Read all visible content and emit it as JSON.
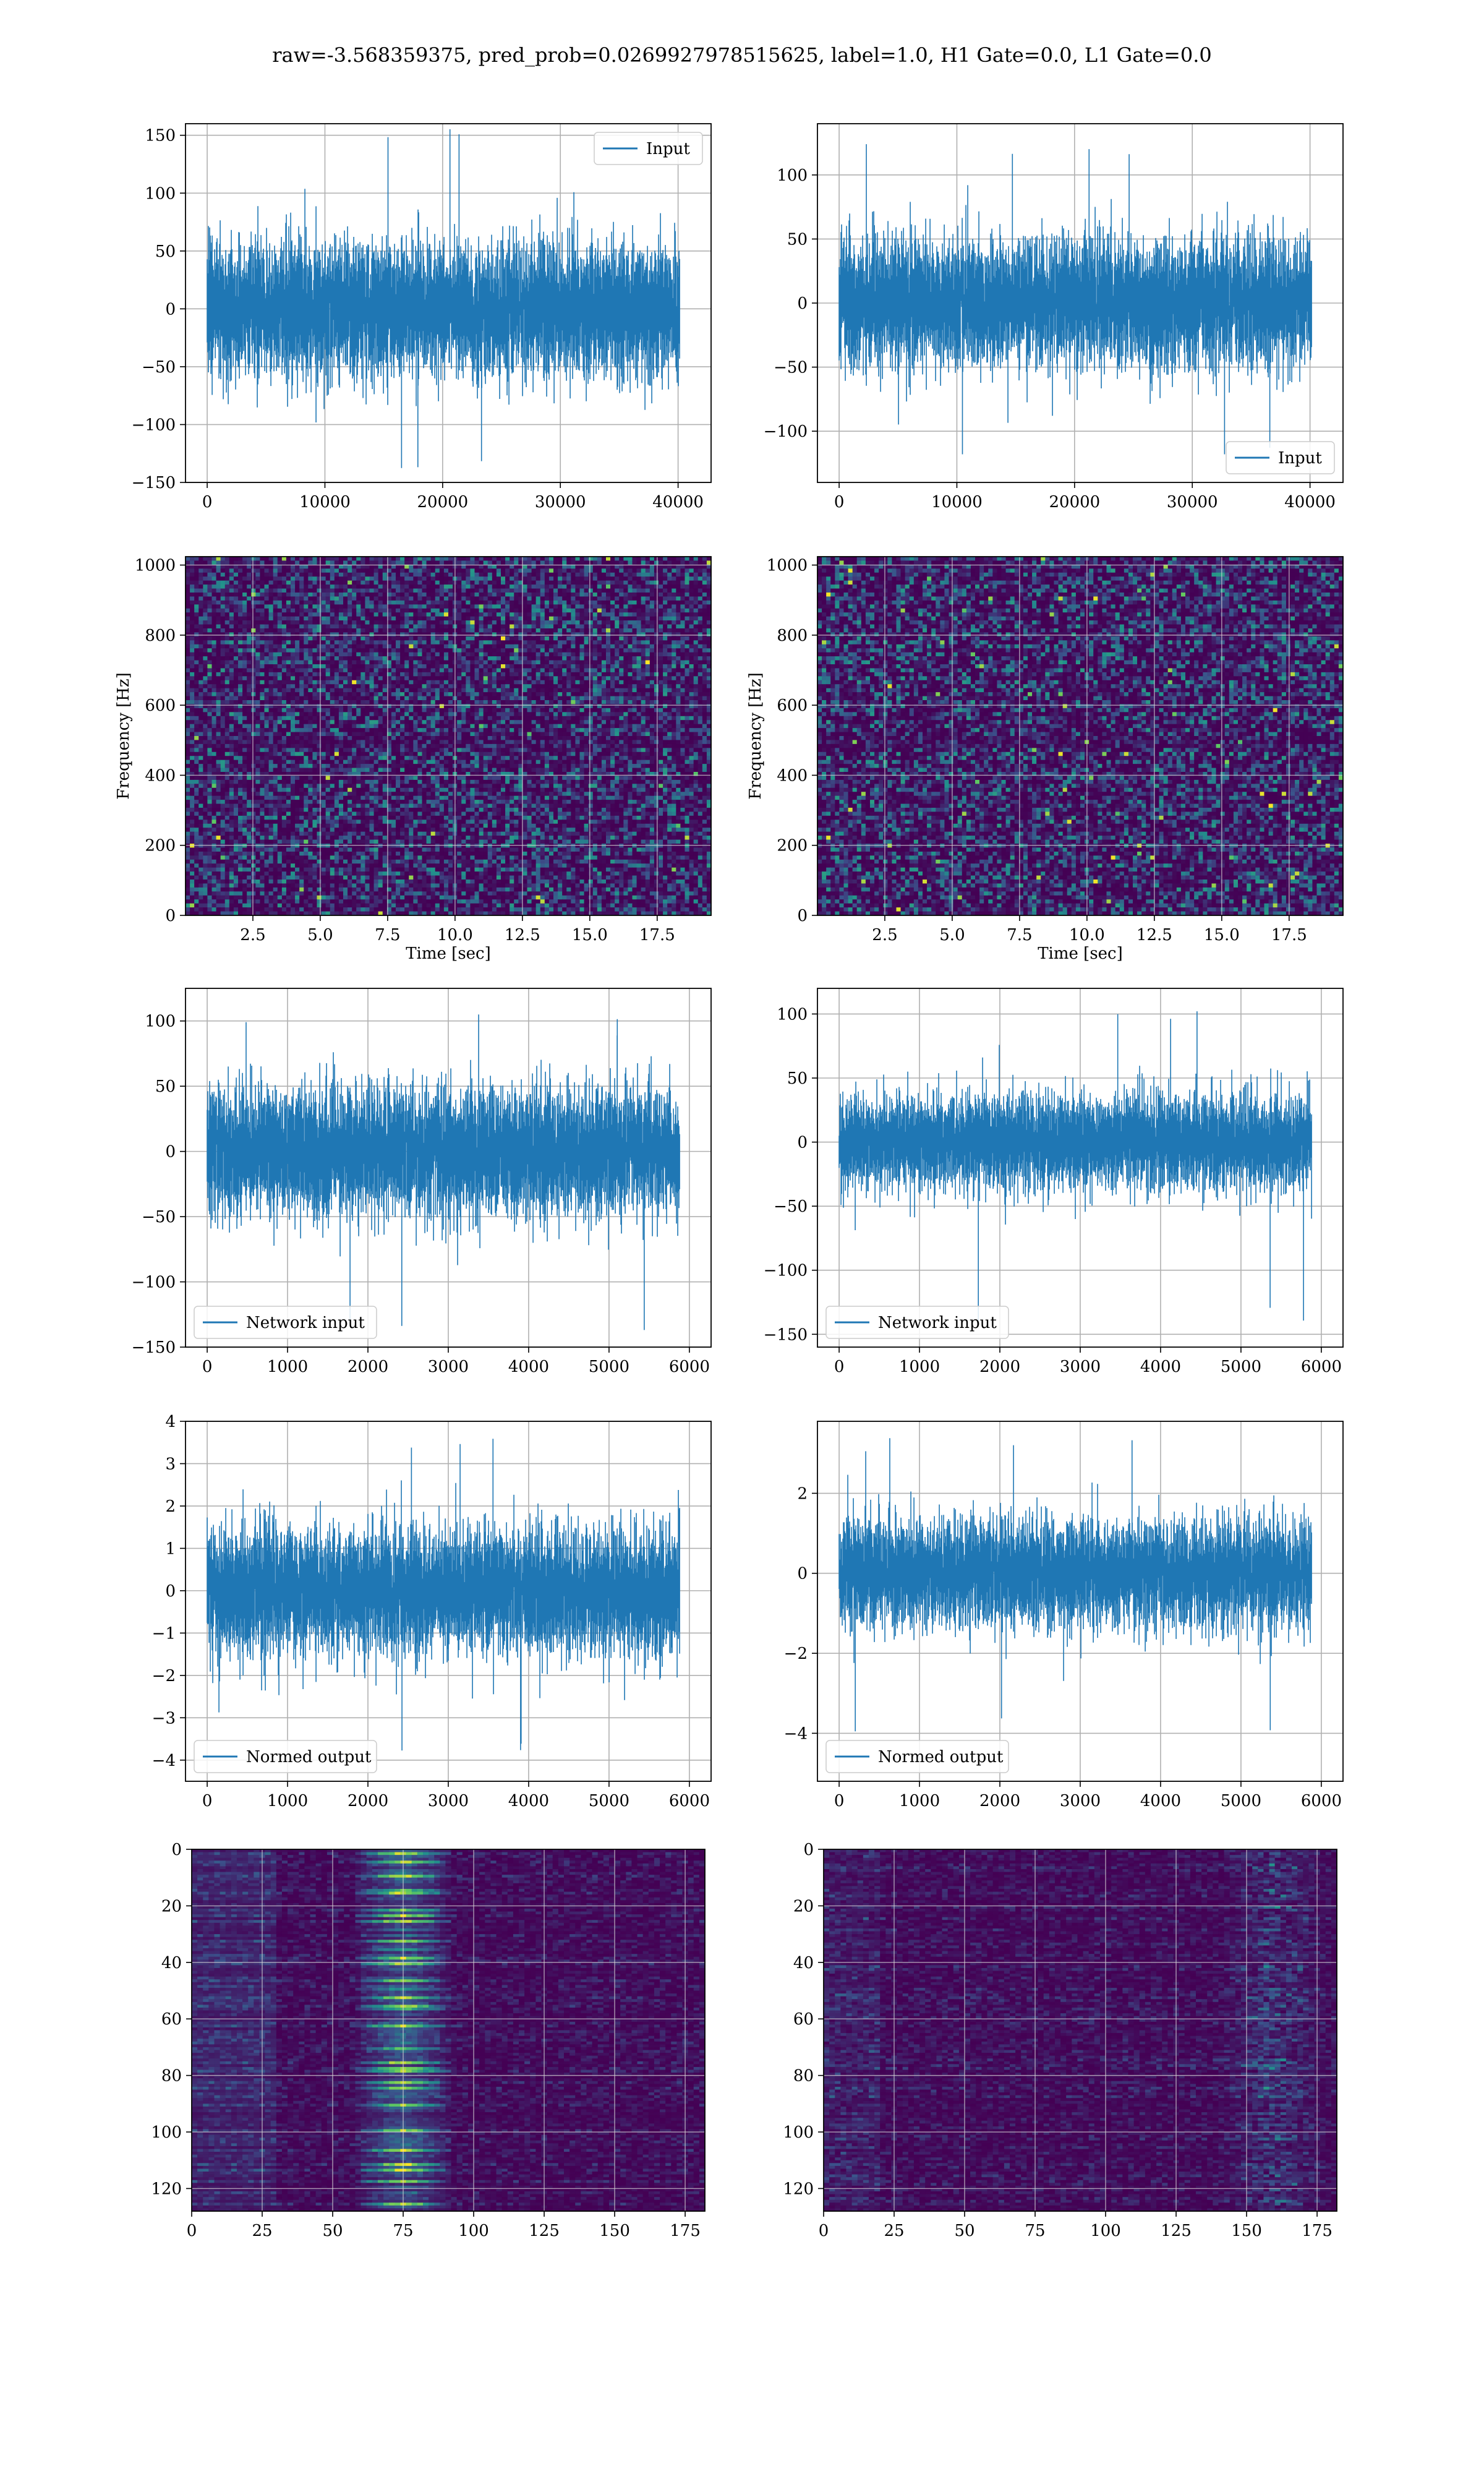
{
  "figure": {
    "suptitle": "raw=-3.568359375, pred_prob=0.0269927978515625, label=1.0, H1 Gate=0.0, L1 Gate=0.0"
  },
  "colors": {
    "series": "#1f77b4",
    "grid": "#b0b0b0",
    "viridis_dark": "#440154",
    "viridis_mid": "#21918c",
    "viridis_bright": "#fde725"
  },
  "chart_data": [
    {
      "id": "input_h1",
      "type": "line",
      "title": "",
      "xlabel": "",
      "ylabel": "",
      "series": [
        {
          "name": "Input",
          "values_description": "dense noise",
          "n_points": 40960,
          "envelope": {
            "typical": [
              -70,
              65
            ],
            "extremes": [
              -140,
              160
            ]
          }
        }
      ],
      "xlim": [
        0,
        40960
      ],
      "ylim": [
        -150,
        160
      ],
      "xticks": [
        0,
        10000,
        20000,
        30000,
        40000
      ],
      "yticks": [
        -150,
        -100,
        -50,
        0,
        50,
        100,
        150
      ],
      "legend": "upper right",
      "grid": true
    },
    {
      "id": "input_l1",
      "type": "line",
      "title": "",
      "xlabel": "",
      "ylabel": "",
      "series": [
        {
          "name": "Input",
          "n_points": 40960,
          "envelope": {
            "typical": [
              -60,
              55
            ],
            "extremes": [
              -130,
              130
            ]
          }
        }
      ],
      "xlim": [
        0,
        40960
      ],
      "ylim": [
        -140,
        140
      ],
      "xticks": [
        0,
        10000,
        20000,
        30000,
        40000
      ],
      "yticks": [
        -100,
        -50,
        0,
        50,
        100
      ],
      "legend": "lower right",
      "grid": true
    },
    {
      "id": "spec_h1",
      "type": "heatmap",
      "title": "",
      "xlabel": "Time [sec]",
      "ylabel": "Frequency [Hz]",
      "xlim": [
        0,
        19.5
      ],
      "ylim": [
        0,
        1024
      ],
      "xticks": [
        "2.5",
        "5.0",
        "7.5",
        "10.0",
        "12.5",
        "15.0",
        "17.5"
      ],
      "yticks": [
        0,
        200,
        400,
        600,
        800,
        1000
      ],
      "colormap": "viridis",
      "grid": true
    },
    {
      "id": "spec_l1",
      "type": "heatmap",
      "title": "",
      "xlabel": "Time [sec]",
      "ylabel": "Frequency [Hz]",
      "xlim": [
        0,
        19.5
      ],
      "ylim": [
        0,
        1024
      ],
      "xticks": [
        "2.5",
        "5.0",
        "7.5",
        "10.0",
        "12.5",
        "15.0",
        "17.5"
      ],
      "yticks": [
        0,
        200,
        400,
        600,
        800,
        1000
      ],
      "colormap": "viridis",
      "grid": true
    },
    {
      "id": "net_h1",
      "type": "line",
      "title": "",
      "xlabel": "",
      "ylabel": "",
      "series": [
        {
          "name": "Network input",
          "n_points": 5850,
          "envelope": {
            "typical": [
              -60,
              55
            ],
            "extremes": [
              -137,
              112
            ]
          }
        }
      ],
      "xlim": [
        0,
        6000
      ],
      "ylim": [
        -150,
        125
      ],
      "xticks": [
        0,
        1000,
        2000,
        3000,
        4000,
        5000,
        6000
      ],
      "yticks": [
        -150,
        -100,
        -50,
        0,
        50,
        100
      ],
      "legend": "lower left",
      "grid": true
    },
    {
      "id": "net_l1",
      "type": "line",
      "title": "",
      "xlabel": "",
      "ylabel": "",
      "series": [
        {
          "name": "Network input",
          "n_points": 5850,
          "envelope": {
            "typical": [
              -45,
              45
            ],
            "extremes": [
              -150,
              112
            ]
          }
        }
      ],
      "xlim": [
        0,
        6000
      ],
      "ylim": [
        -160,
        120
      ],
      "xticks": [
        0,
        1000,
        2000,
        3000,
        4000,
        5000,
        6000
      ],
      "yticks": [
        -150,
        -100,
        -50,
        0,
        50,
        100
      ],
      "legend": "lower left",
      "grid": true
    },
    {
      "id": "norm_h1",
      "type": "line",
      "title": "",
      "xlabel": "",
      "ylabel": "",
      "series": [
        {
          "name": "Normed output",
          "n_points": 5850,
          "envelope": {
            "typical": [
              -1.8,
              1.8
            ],
            "extremes": [
              -4.2,
              3.6
            ]
          }
        }
      ],
      "xlim": [
        0,
        6000
      ],
      "ylim": [
        -4.5,
        4
      ],
      "xticks": [
        0,
        1000,
        2000,
        3000,
        4000,
        5000,
        6000
      ],
      "yticks": [
        -4,
        -3,
        -2,
        -1,
        0,
        1,
        2,
        3,
        4
      ],
      "legend": "lower left",
      "grid": true
    },
    {
      "id": "norm_l1",
      "type": "line",
      "title": "",
      "xlabel": "",
      "ylabel": "",
      "series": [
        {
          "name": "Normed output",
          "n_points": 5850,
          "envelope": {
            "typical": [
              -1.6,
              1.6
            ],
            "extremes": [
              -4.2,
              3.5
            ]
          }
        }
      ],
      "xlim": [
        0,
        6000
      ],
      "ylim": [
        -5.2,
        3.8
      ],
      "xticks": [
        0,
        1000,
        2000,
        3000,
        4000,
        5000,
        6000
      ],
      "yticks": [
        -4,
        -2,
        0,
        2
      ],
      "legend": "lower left",
      "grid": true
    },
    {
      "id": "feat_h1",
      "type": "heatmap",
      "title": "",
      "xlabel": "",
      "ylabel": "",
      "xlim": [
        0,
        182
      ],
      "ylim": [
        128,
        0
      ],
      "xticks": [
        0,
        25,
        50,
        75,
        100,
        125,
        150,
        175
      ],
      "yticks": [
        0,
        20,
        40,
        60,
        80,
        100,
        120
      ],
      "colormap": "viridis",
      "grid": true,
      "notes": "bright horizontal streaks around x=60-90"
    },
    {
      "id": "feat_l1",
      "type": "heatmap",
      "title": "",
      "xlabel": "",
      "ylabel": "",
      "xlim": [
        0,
        182
      ],
      "ylim": [
        128,
        0
      ],
      "xticks": [
        0,
        25,
        50,
        75,
        100,
        125,
        150,
        175
      ],
      "yticks": [
        0,
        20,
        40,
        60,
        80,
        100,
        120
      ],
      "colormap": "viridis",
      "grid": true,
      "notes": "bright spots near x=150-170"
    }
  ]
}
